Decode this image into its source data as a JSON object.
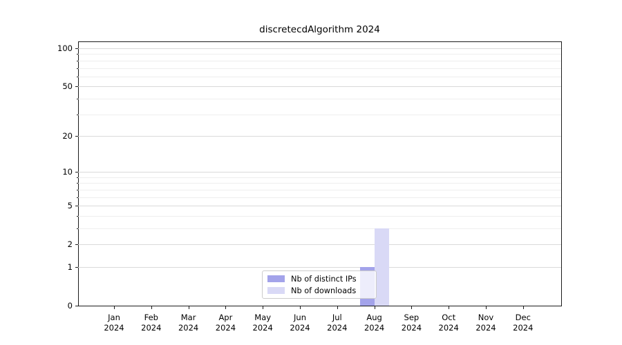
{
  "chart_data": {
    "type": "bar",
    "title": "discretecdAlgorithm 2024",
    "categories": [
      "Jan 2024",
      "Feb 2024",
      "Mar 2024",
      "Apr 2024",
      "May 2024",
      "Jun 2024",
      "Jul 2024",
      "Aug 2024",
      "Sep 2024",
      "Oct 2024",
      "Nov 2024",
      "Dec 2024"
    ],
    "series": [
      {
        "name": "Nb of distinct IPs",
        "color": "#a3a3ea",
        "values": [
          0,
          0,
          0,
          0,
          0,
          0,
          0,
          1,
          0,
          0,
          0,
          0
        ]
      },
      {
        "name": "Nb of downloads",
        "color": "#d9d9f6",
        "values": [
          0,
          0,
          0,
          0,
          0,
          0,
          0,
          3,
          0,
          0,
          0,
          0
        ]
      }
    ],
    "xlabel": "",
    "ylabel": "",
    "yscale": "log1p",
    "ylim": [
      0,
      114
    ],
    "yticks": [
      0,
      1,
      2,
      5,
      10,
      20,
      50,
      100
    ],
    "minor_yticks": [
      3,
      4,
      6,
      7,
      8,
      9,
      30,
      40,
      60,
      70,
      80,
      90
    ],
    "grid": "horizontal, major and minor, no vertical gridlines",
    "legend_position": "lower center",
    "colors": {
      "major_grid": "#d9d9d9",
      "minor_grid": "#eeeeee",
      "axis": "#1a1a1a",
      "background": "#ffffff"
    }
  },
  "legend": {
    "item1": "Nb of distinct IPs",
    "item2": "Nb of downloads"
  }
}
